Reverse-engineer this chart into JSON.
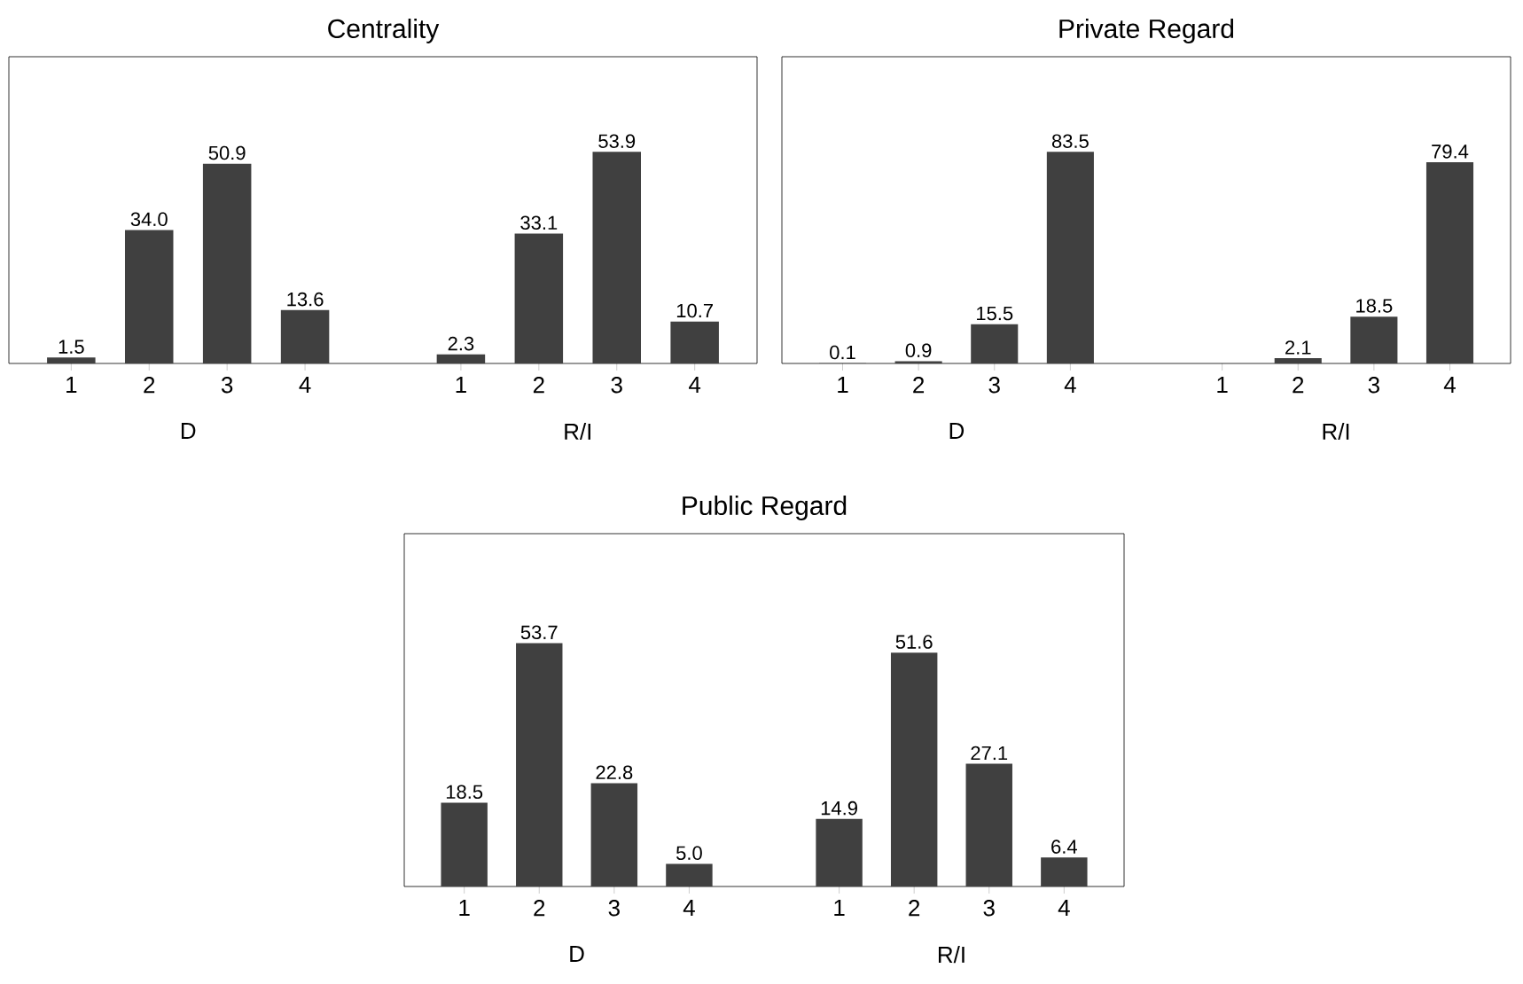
{
  "chart_data": [
    {
      "type": "bar",
      "title": "Centrality",
      "categories": [
        "1",
        "2",
        "3",
        "4",
        null,
        "1",
        "2",
        "3",
        "4"
      ],
      "values": [
        1.5,
        34.0,
        50.9,
        13.6,
        null,
        2.3,
        33.1,
        53.9,
        10.7
      ],
      "value_labels": [
        "1.5",
        "34.0",
        "50.9",
        "13.6",
        null,
        "2.3",
        "33.1",
        "53.9",
        "10.7"
      ],
      "color": "#404040",
      "annotations": [
        "D",
        "R/I"
      ]
    },
    {
      "type": "bar",
      "title": "Private Regard",
      "categories": [
        "1",
        "2",
        "3",
        "4",
        null,
        "1",
        "2",
        "3",
        "4"
      ],
      "values": [
        0.1,
        0.9,
        15.5,
        83.5,
        null,
        null,
        2.1,
        18.5,
        79.4
      ],
      "value_labels": [
        "0.1",
        "0.9",
        "15.5",
        "83.5",
        null,
        null,
        "2.1",
        "18.5",
        "79.4"
      ],
      "color": "#404040",
      "annotations": [
        "D",
        "R/I"
      ]
    },
    {
      "type": "bar",
      "title": "Public Regard",
      "categories": [
        "1",
        "2",
        "3",
        "4",
        null,
        "1",
        "2",
        "3",
        "4"
      ],
      "values": [
        18.5,
        53.7,
        22.8,
        5.0,
        null,
        14.9,
        51.6,
        27.1,
        6.4
      ],
      "value_labels": [
        "18.5",
        "53.7",
        "22.8",
        "5.0",
        null,
        "14.9",
        "51.6",
        "27.1",
        "6.4"
      ],
      "color": "#404040",
      "annotations": [
        "D",
        "R/I"
      ]
    }
  ]
}
